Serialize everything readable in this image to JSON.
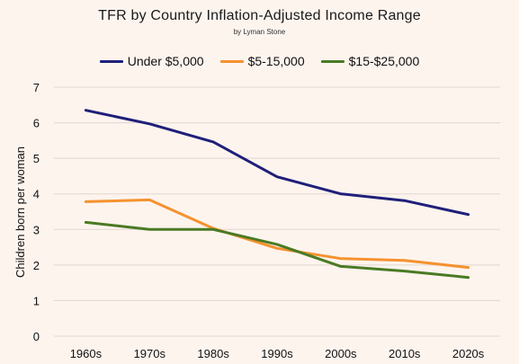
{
  "chart_data": {
    "type": "line",
    "title": "TFR by Country Inflation-Adjusted Income Range",
    "subtitle": "by Lyman Stone",
    "xlabel": "",
    "ylabel": "Children born per woman",
    "categories": [
      "1960s",
      "1970s",
      "1980s",
      "1990s",
      "2000s",
      "2010s",
      "2020s"
    ],
    "ylim": [
      0,
      7
    ],
    "yticks": [
      "0",
      "1",
      "2",
      "3",
      "4",
      "5",
      "6",
      "7"
    ],
    "grid": "horizontal",
    "legend_position": "top",
    "series": [
      {
        "name": "Under $5,000",
        "color": "#1f1f7a",
        "values": [
          6.35,
          5.97,
          5.46,
          4.48,
          4.0,
          3.81,
          3.42
        ]
      },
      {
        "name": "$5-15,000",
        "color": "#f5922f",
        "values": [
          3.78,
          3.83,
          3.03,
          2.47,
          2.18,
          2.13,
          1.93
        ]
      },
      {
        "name": "$15-$25,000",
        "color": "#4a7a23",
        "values": [
          3.2,
          3.0,
          3.0,
          2.58,
          1.96,
          1.83,
          1.65
        ]
      }
    ]
  }
}
